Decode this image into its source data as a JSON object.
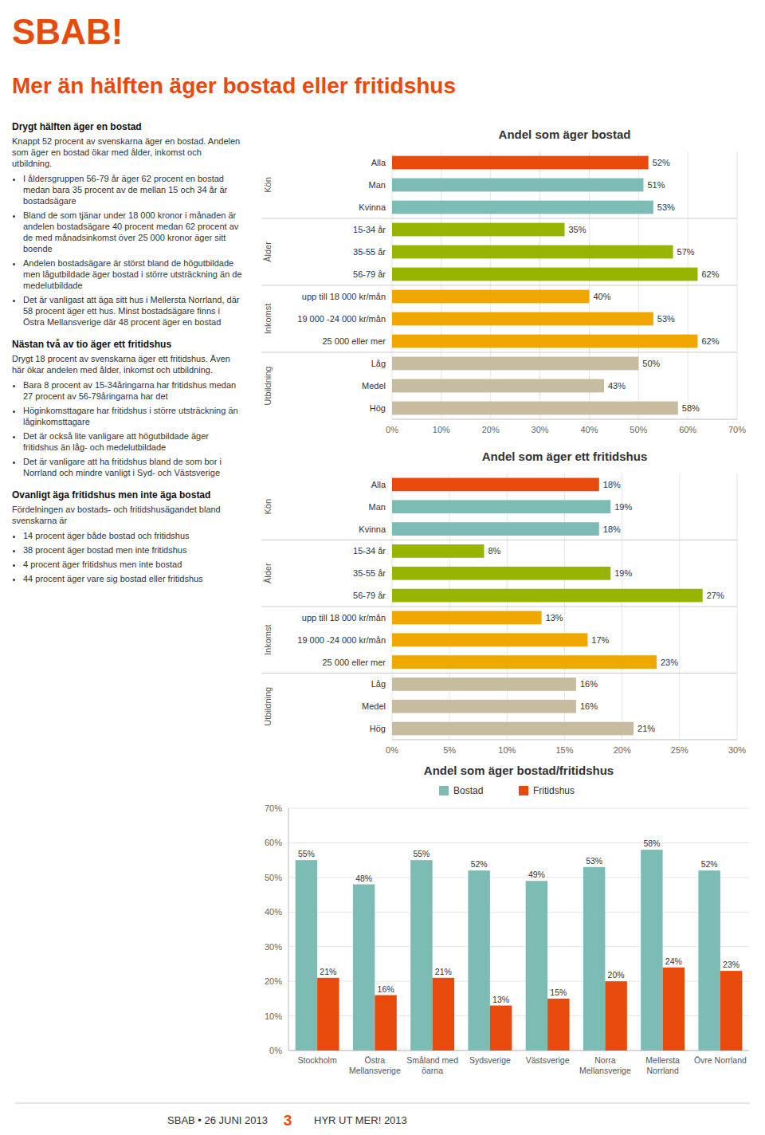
{
  "logo": "SBAB!",
  "title": "Mer än hälften äger bostad eller fritidshus",
  "color": "#E84A0C",
  "chart_data": [
    {
      "type": "bar",
      "orientation": "horizontal",
      "title": "Andel som äger bostad",
      "categories": [
        "Hög",
        "Medel",
        "Låg",
        "25 000 eller mer",
        "19 000 -24 000 kr/mån",
        "upp till 18 000 kr/mån",
        "56-79 år",
        "35-55 år",
        "15-34 år",
        "Kvinna",
        "Man",
        "Alla"
      ],
      "values": [
        58,
        43,
        50,
        62,
        53,
        40,
        62,
        57,
        35,
        53,
        51,
        52
      ],
      "value_labels": [
        "58%",
        "43%",
        "50%",
        "62%",
        "53%",
        "40%",
        "62%",
        "57%",
        "35%",
        "53%",
        "51%",
        "52%"
      ],
      "colors": [
        "#C8BCA0",
        "#C8BCA0",
        "#C8BCA0",
        "#F0A800",
        "#F0A800",
        "#F0A800",
        "#96B400",
        "#96B400",
        "#96B400",
        "#7DBCB4",
        "#7DBCB4",
        "#E84A0C"
      ],
      "xlim": [
        0,
        70
      ],
      "xticks": [
        {
          "value": 0,
          "label": "0%"
        },
        {
          "value": 10,
          "label": "10%"
        },
        {
          "value": 20,
          "label": "20%"
        },
        {
          "value": 30,
          "label": "30%"
        },
        {
          "value": 40,
          "label": "40%"
        },
        {
          "value": 50,
          "label": "50%"
        },
        {
          "value": 60,
          "label": "60%"
        },
        {
          "value": 70,
          "label": "70%"
        }
      ],
      "grid": true,
      "data_labels": true,
      "groups": [
        {
          "label": "Utbildning",
          "start": 0,
          "end": 2
        },
        {
          "label": "Inkomst",
          "start": 3,
          "end": 5
        },
        {
          "label": "Ålder",
          "start": 6,
          "end": 8
        },
        {
          "label": "Kön",
          "start": 9,
          "end": 11
        }
      ]
    },
    {
      "type": "bar",
      "orientation": "horizontal",
      "title": "Andel som äger ett fritidshus",
      "categories": [
        "Hög",
        "Medel",
        "Låg",
        "25 000 eller mer",
        "19 000 -24 000 kr/mån",
        "upp till 18 000 kr/mån",
        "56-79 år",
        "35-55 år",
        "15-34 år",
        "Kvinna",
        "Man",
        "Alla"
      ],
      "values": [
        21,
        16,
        16,
        23,
        17,
        13,
        27,
        19,
        8,
        18,
        19,
        18
      ],
      "value_labels": [
        "21%",
        "16%",
        "16%",
        "23%",
        "17%",
        "13%",
        "27%",
        "19%",
        "8%",
        "18%",
        "19%",
        "18%"
      ],
      "colors": [
        "#C8BCA0",
        "#C8BCA0",
        "#C8BCA0",
        "#F0A800",
        "#F0A800",
        "#F0A800",
        "#96B400",
        "#96B400",
        "#96B400",
        "#7DBCB4",
        "#7DBCB4",
        "#E84A0C"
      ],
      "xlim": [
        0,
        30
      ],
      "xticks": [
        {
          "value": 0,
          "label": "0%"
        },
        {
          "value": 5,
          "label": "5%"
        },
        {
          "value": 10,
          "label": "10%"
        },
        {
          "value": 15,
          "label": "15%"
        },
        {
          "value": 20,
          "label": "20%"
        },
        {
          "value": 25,
          "label": "25%"
        },
        {
          "value": 30,
          "label": "30%"
        }
      ],
      "grid": true,
      "data_labels": true,
      "groups": [
        {
          "label": "Utbildning",
          "start": 0,
          "end": 2
        },
        {
          "label": "Inkomst",
          "start": 3,
          "end": 5
        },
        {
          "label": "Ålder",
          "start": 6,
          "end": 8
        },
        {
          "label": "Kön",
          "start": 9,
          "end": 11
        }
      ]
    },
    {
      "type": "bar",
      "title": "Andel som äger bostad/fritidshus",
      "categories": [
        "Stockholm",
        "Östra\nMellansverige",
        "Småland med\nöarna",
        "Sydsverige",
        "Västsverige",
        "Norra\nMellansverige",
        "Mellersta\nNorrland",
        "Övre Norrland"
      ],
      "series": [
        {
          "name": "Bostad",
          "color": "#7DBCB4",
          "values": [
            55,
            48,
            55,
            52,
            49,
            53,
            58,
            52
          ],
          "value_labels": [
            "55%",
            "48%",
            "55%",
            "52%",
            "49%",
            "53%",
            "58%",
            "52%"
          ]
        },
        {
          "name": "Fritidshus",
          "color": "#E84A0C",
          "values": [
            21,
            16,
            21,
            13,
            15,
            20,
            24,
            23
          ],
          "value_labels": [
            "21%",
            "16%",
            "21%",
            "13%",
            "15%",
            "20%",
            "24%",
            "23%"
          ]
        }
      ],
      "ylim": [
        0,
        70
      ],
      "yticks": [
        {
          "value": 0,
          "label": "0%"
        },
        {
          "value": 10,
          "label": "10%"
        },
        {
          "value": 20,
          "label": "20%"
        },
        {
          "value": 30,
          "label": "30%"
        },
        {
          "value": 40,
          "label": "40%"
        },
        {
          "value": 50,
          "label": "50%"
        },
        {
          "value": 60,
          "label": "60%"
        },
        {
          "value": 70,
          "label": "70%"
        }
      ],
      "grid": true,
      "legend": "top",
      "data_labels": true
    }
  ],
  "text_blocks": [
    {
      "heading": "Drygt hälften äger en bostad",
      "para": "Knappt 52 procent av svenskarna äger en bostad. Andelen som äger en bostad ökar med ålder, inkomst och utbildning.",
      "bullets": [
        "I åldersgruppen 56-79 år äger 62 procent en bostad medan bara 35 procent av de mellan 15 och 34 år är bostadsägare",
        "Bland de som tjänar under 18 000 kronor i månaden är andelen bostadsägare 40 procent medan 62 procent av de med månadsinkomst över 25 000 kronor äger sitt boende",
        "Andelen bostadsägare är störst bland de högutbildade men lågutbildade äger bostad i större utsträckning än de medelutbildade",
        "Det är vanligast att äga sitt hus i Mellersta Norrland, där 58 procent äger ett hus. Minst bostadsägare finns i Östra Mellansverige där 48 procent äger en bostad"
      ]
    },
    {
      "heading": "Nästan två av tio äger ett fritidshus",
      "para": "Drygt 18 procent av svenskarna äger ett fritidshus. Även här ökar andelen med ålder, inkomst och utbildning.",
      "bullets": [
        "Bara 8 procent av 15-34åringarna har fritidshus medan 27 procent av 56-79åringarna har det",
        "Höginkomsttagare har fritidshus i större utsträckning än låginkomsttagare",
        "Det är också lite vanligare att högutbildade äger fritidshus än låg- och medelutbildade",
        "Det är vanligare att ha fritidshus bland de som bor i Norrland och mindre vanligt i Syd- och Västsverige"
      ]
    },
    {
      "heading": "Ovanligt äga fritidshus men inte äga bostad",
      "para": "Fördelningen av bostads- och fritidshusägandet bland svenskarna är",
      "bullets": [
        "14 procent äger både bostad och fritidshus",
        "38 procent äger bostad men inte fritidshus",
        "4 procent äger fritidshus men inte bostad",
        "44 procent äger vare sig bostad eller fritidshus"
      ]
    }
  ],
  "footer": [
    "SBAB • 26 JUNI 2013",
    "3",
    "HYR UT MER! 2013"
  ]
}
